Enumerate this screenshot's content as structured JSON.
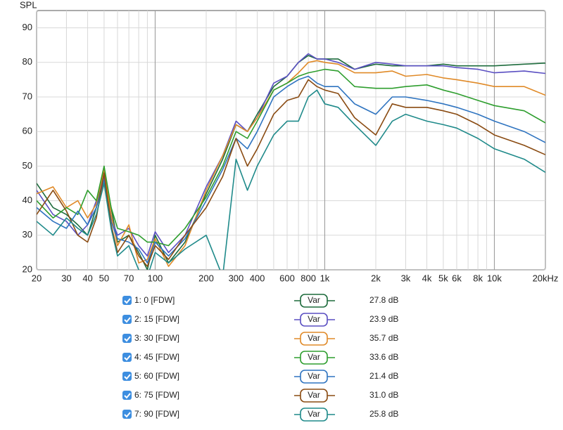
{
  "chart_data": {
    "type": "line",
    "ylabel": "SPL",
    "xscale": "log",
    "grid": true,
    "x": [
      20,
      25,
      30,
      35,
      40,
      45,
      50,
      55,
      60,
      70,
      80,
      90,
      100,
      120,
      150,
      200,
      250,
      300,
      350,
      400,
      500,
      600,
      700,
      800,
      900,
      1000,
      1200,
      1500,
      2000,
      2500,
      3000,
      4000,
      5000,
      6000,
      8000,
      10000,
      15000,
      20000
    ],
    "xlim": [
      20,
      20000
    ],
    "xticks": [
      20,
      30,
      40,
      50,
      70,
      100,
      200,
      300,
      400,
      600,
      800,
      {
        "value": 1000,
        "label": "1k"
      },
      {
        "value": 2000,
        "label": "2k"
      },
      {
        "value": 3000,
        "label": "3k"
      },
      {
        "value": 4000,
        "label": "4k"
      },
      {
        "value": 5000,
        "label": "5k"
      },
      {
        "value": 6000,
        "label": "6k"
      },
      {
        "value": 8000,
        "label": "8k"
      },
      {
        "value": 10000,
        "label": "10k"
      },
      {
        "value": 20000,
        "label": "20kHz"
      }
    ],
    "x_minor_grid": [
      60,
      80,
      90,
      500,
      700,
      900,
      7000,
      9000
    ],
    "x_major_grid": [
      100,
      1000,
      10000
    ],
    "ylim": [
      20,
      95
    ],
    "yticks": [
      20,
      30,
      40,
      50,
      60,
      70,
      80,
      90
    ],
    "button_label": "Var",
    "series": [
      {
        "name": "1: 0 [FDW]",
        "color": "#1d6b3c",
        "level": "27.8 dB",
        "values": [
          45,
          38,
          36,
          33,
          30,
          38,
          48,
          38,
          28,
          30,
          25,
          20,
          30,
          22,
          28,
          42,
          52,
          62,
          60,
          65,
          73,
          76,
          80,
          82,
          81,
          81,
          81,
          78,
          79.5,
          79,
          79,
          79,
          79.5,
          79,
          79,
          79,
          79.5,
          79.8
        ]
      },
      {
        "name": "2: 15 [FDW]",
        "color": "#5a4fc2",
        "level": "23.9 dB",
        "values": [
          43,
          36,
          34,
          30,
          33,
          40,
          47,
          35,
          30,
          32,
          27,
          24,
          31,
          25,
          30,
          44,
          53,
          63,
          60,
          64,
          74,
          76,
          80,
          82.5,
          81,
          81,
          80,
          78,
          80,
          79.5,
          79,
          79,
          79,
          78.5,
          78,
          77,
          77.5,
          76.8
        ]
      },
      {
        "name": "3: 30 [FDW]",
        "color": "#e08a28",
        "level": "35.7 dB",
        "values": [
          42,
          44,
          38,
          40,
          35,
          39,
          49,
          36,
          27,
          33,
          22,
          23,
          29,
          21,
          27,
          43,
          53,
          62,
          60,
          64,
          72,
          74,
          77,
          80,
          80.5,
          80,
          79.5,
          77,
          77,
          77.5,
          76,
          76.5,
          75.5,
          75,
          74,
          73,
          73,
          70.5
        ]
      },
      {
        "name": "4: 45 [FDW]",
        "color": "#2e9e2e",
        "level": "33.6 dB",
        "values": [
          40,
          35,
          38,
          36,
          43,
          40,
          50,
          38,
          32,
          31,
          30,
          28,
          28,
          27,
          32,
          41,
          50,
          60,
          58,
          63,
          72,
          74,
          76,
          77,
          77.5,
          78,
          77.5,
          73,
          72.5,
          72.5,
          73,
          73.5,
          72,
          71,
          69,
          67.5,
          66,
          62.5
        ]
      },
      {
        "name": "5: 60 [FDW]",
        "color": "#2f74c0",
        "level": "21.4 dB",
        "values": [
          38,
          34,
          32,
          37,
          33,
          38,
          46,
          34,
          29,
          28,
          26,
          22,
          28,
          24,
          29,
          40,
          49,
          58,
          55,
          60,
          70,
          73,
          75,
          76,
          74,
          73,
          73,
          68,
          65,
          70,
          70,
          69,
          68,
          67,
          65,
          63,
          60,
          56.8
        ]
      },
      {
        "name": "6: 75 [FDW]",
        "color": "#8a4b12",
        "level": "31.0 dB",
        "values": [
          36,
          43,
          37,
          30,
          28,
          35,
          48,
          33,
          25,
          30,
          24,
          21,
          27,
          23,
          30,
          38,
          47,
          58,
          50,
          55,
          65,
          69,
          70,
          75,
          73,
          72,
          71,
          64,
          59,
          68,
          67,
          67,
          66,
          65,
          62,
          59,
          56,
          53.3
        ]
      },
      {
        "name": "7: 90 [FDW]",
        "color": "#1f8a8a",
        "level": "25.8 dB",
        "values": [
          34,
          30,
          35,
          32,
          30,
          36,
          45,
          32,
          24,
          27,
          20,
          18,
          25,
          22,
          26,
          30,
          18,
          52,
          43,
          50,
          59,
          63,
          63,
          70,
          72,
          68,
          67,
          62,
          56,
          63,
          65,
          63,
          62,
          61,
          58,
          55,
          52,
          48.2
        ]
      }
    ]
  }
}
